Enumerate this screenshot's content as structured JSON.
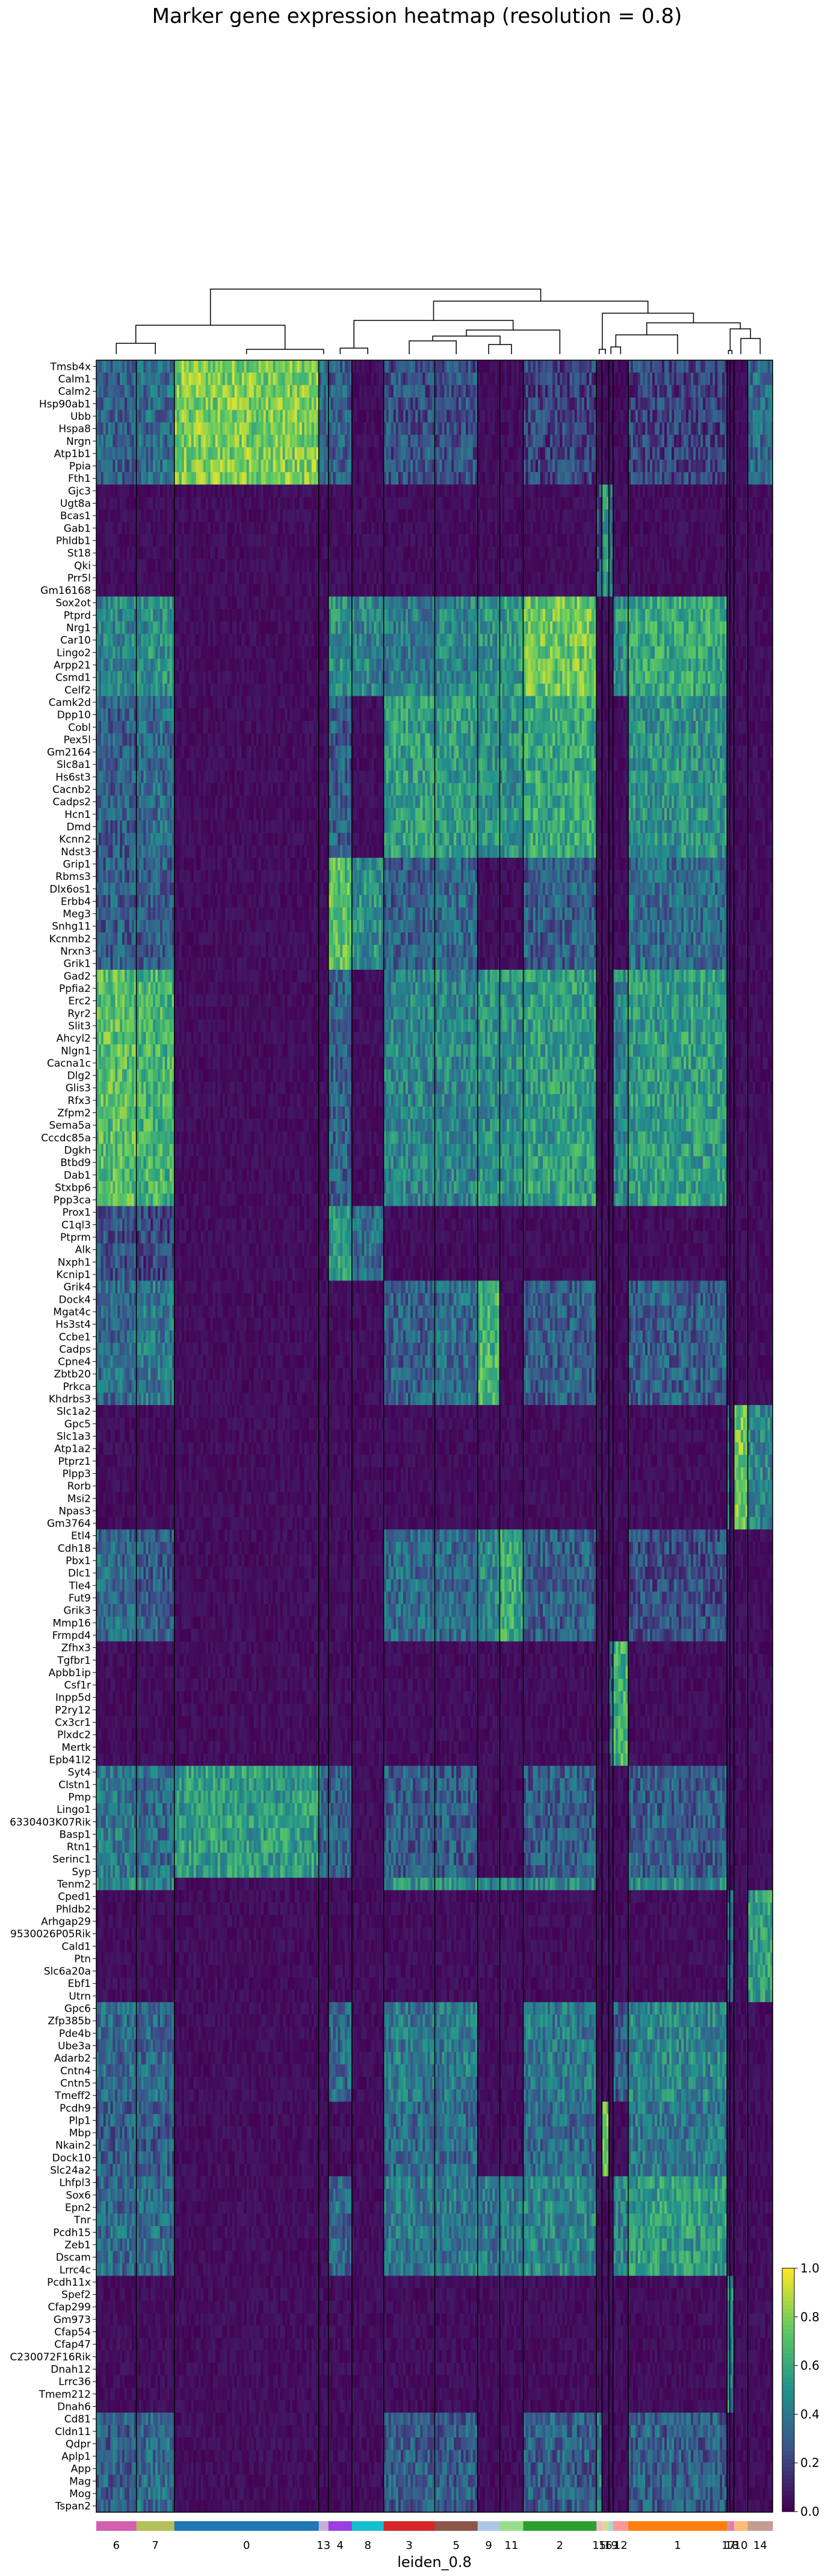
{
  "chart_data": {
    "type": "heatmap",
    "title": "Marker gene expression heatmap (resolution = 0.8)",
    "xlabel": "leiden_0.8",
    "ylabel": "",
    "clusters_in_order": [
      "6",
      "7",
      "0",
      "13",
      "4",
      "8",
      "3",
      "5",
      "9",
      "11",
      "2",
      "15",
      "16",
      "19",
      "12",
      "1",
      "17",
      "18",
      "10",
      "14"
    ],
    "cluster_colors": {
      "6": "#d45fb0",
      "7": "#b3bf5a",
      "0": "#1f77b4",
      "13": "#c5b0d5",
      "4": "#9b3fe0",
      "8": "#17becf",
      "3": "#d62728",
      "5": "#8c564b",
      "9": "#aec7e8",
      "11": "#98df8a",
      "2": "#2ca02c",
      "15": "#f7b6d2",
      "16": "#dbdb8d",
      "19": "#9edae5",
      "12": "#ff9896",
      "1": "#ff7f0e",
      "17": "#c49c94",
      "18": "#e377c2",
      "10": "#ffbb78",
      "14": "#c49c94"
    },
    "genes": [
      "Tmsb4x",
      "Calm1",
      "Calm2",
      "Hsp90ab1",
      "Ubb",
      "Hspa8",
      "Nrgn",
      "Atp1b1",
      "Ppia",
      "Fth1",
      "Gjc3",
      "Ugt8a",
      "Bcas1",
      "Gab1",
      "Phldb1",
      "St18",
      "Qki",
      "Prr5l",
      "Gm16168",
      "Sox2ot",
      "Ptprd",
      "Nrg1",
      "Car10",
      "Lingo2",
      "Arpp21",
      "Csmd1",
      "Celf2",
      "Camk2d",
      "Dpp10",
      "Cobl",
      "Pex5l",
      "Gm2164",
      "Slc8a1",
      "Hs6st3",
      "Cacnb2",
      "Cadps2",
      "Hcn1",
      "Dmd",
      "Kcnn2",
      "Ndst3",
      "Grip1",
      "Rbms3",
      "Dlx6os1",
      "Erbb4",
      "Meg3",
      "Snhg11",
      "Kcnmb2",
      "Nrxn3",
      "Grik1",
      "Gad2",
      "Ppfia2",
      "Erc2",
      "Ryr2",
      "Slit3",
      "Ahcyl2",
      "Nlgn1",
      "Cacna1c",
      "Dlg2",
      "Glis3",
      "Rfx3",
      "Zfpm2",
      "Sema5a",
      "Cccdc85a",
      "Dgkh",
      "Btbd9",
      "Dab1",
      "Stxbp6",
      "Ppp3ca",
      "Prox1",
      "C1ql3",
      "Ptprm",
      "Alk",
      "Nxph1",
      "Kcnip1",
      "Grik4",
      "Dock4",
      "Mgat4c",
      "Hs3st4",
      "Ccbe1",
      "Cadps",
      "Cpne4",
      "Zbtb20",
      "Prkca",
      "Khdrbs3",
      "Slc1a2",
      "Gpc5",
      "Slc1a3",
      "Atp1a2",
      "Ptprz1",
      "Plpp3",
      "Rorb",
      "Msi2",
      "Npas3",
      "Gm3764",
      "Etl4",
      "Cdh18",
      "Pbx1",
      "Dlc1",
      "Tle4",
      "Fut9",
      "Grik3",
      "Mmp16",
      "Frmpd4",
      "Zfhx3",
      "Tgfbr1",
      "Apbb1ip",
      "Csf1r",
      "Inpp5d",
      "P2ry12",
      "Cx3cr1",
      "Plxdc2",
      "Mertk",
      "Epb41l2",
      "Syt4",
      "Clstn1",
      "Pmp",
      "Lingo1",
      "6330403K07Rik",
      "Basp1",
      "Rtn1",
      "Serinc1",
      "Syp",
      "Tenm2",
      "Cped1",
      "Phldb2",
      "Arhgap29",
      "9530026P05Rik",
      "Cald1",
      "Ptn",
      "Slc6a20a",
      "Ebf1",
      "Utrn",
      "Gpc6",
      "Zfp385b",
      "Pde4b",
      "Ube3a",
      "Adarb2",
      "Cntn4",
      "Cntn5",
      "Tmeff2",
      "Pcdh9",
      "Plp1",
      "Mbp",
      "Nkain2",
      "Dock10",
      "Slc24a2",
      "Lhfpl3",
      "Sox6",
      "Epn2",
      "Tnr",
      "Pcdh15",
      "Zeb1",
      "Dscam",
      "Lrrc4c",
      "Pcdh11x",
      "Spef2",
      "Cfap299",
      "Gm973",
      "Cfap54",
      "Cfap47",
      "C230072F16Rik",
      "Dnah12",
      "Lrrc36",
      "Tmem212",
      "Dnah6",
      "Cd81",
      "Cldn11",
      "Qdpr",
      "Aplp1",
      "App",
      "Mag",
      "Mog",
      "Tspan2"
    ],
    "colormap": "viridis",
    "color_range": [
      0.0,
      1.0
    ],
    "colorbar_ticks": [
      "0.0",
      "0.2",
      "0.4",
      "0.6",
      "0.8",
      "1.0"
    ],
    "values": []
  }
}
